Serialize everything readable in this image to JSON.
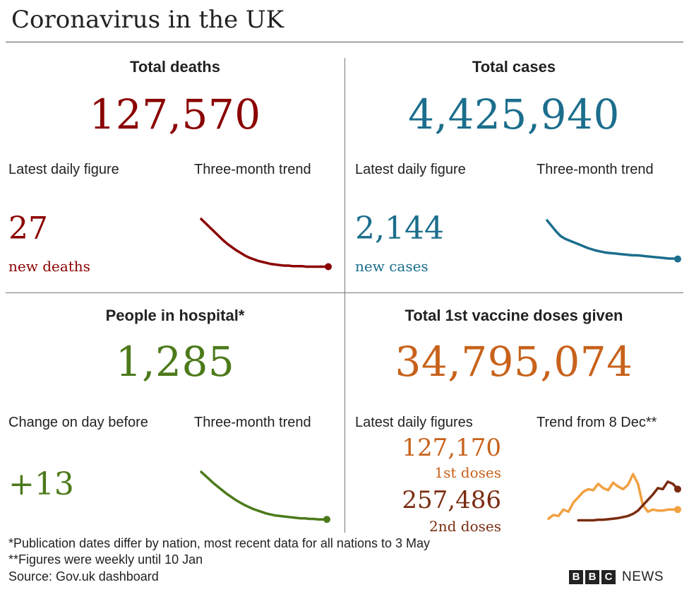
{
  "title": "Coronavirus in the UK",
  "colors": {
    "deaths": "#8b0000",
    "cases": "#1b6e8c",
    "hospital": "#4c7a1a",
    "vaccine": "#c8621b",
    "dose1": "#f2a040",
    "dose2": "#7a2c10"
  },
  "deaths": {
    "heading": "Total deaths",
    "total": "127,570",
    "daily_label": "Latest daily figure",
    "trend_label": "Three-month trend",
    "daily_value": "27",
    "daily_caption": "new deaths"
  },
  "cases": {
    "heading": "Total cases",
    "total": "4,425,940",
    "daily_label": "Latest daily figure",
    "trend_label": "Three-month trend",
    "daily_value": "2,144",
    "daily_caption": "new cases"
  },
  "hospital": {
    "heading": "People in hospital*",
    "total": "1,285",
    "daily_label": "Change on day before",
    "trend_label": "Three-month trend",
    "daily_value": "+13"
  },
  "vaccine": {
    "heading": "Total 1st vaccine doses given",
    "total": "34,795,074",
    "daily_label": "Latest daily figures",
    "trend_label": "Trend from 8 Dec**",
    "dose1_value": "127,170",
    "dose1_caption": "1st doses",
    "dose2_value": "257,486",
    "dose2_caption": "2nd doses"
  },
  "footnotes": {
    "line1": "*Publication dates differ by nation, most recent data for all nations to 3 May",
    "line2": "**Figures were weekly until 10 Jan",
    "source": "Source: Gov.uk dashboard"
  },
  "logo": {
    "letters": [
      "B",
      "B",
      "C"
    ],
    "word": "NEWS"
  },
  "chart_data": [
    {
      "type": "line",
      "series": [
        {
          "values": [
            100,
            92,
            84,
            76,
            68,
            60,
            53,
            47,
            41,
            36,
            31,
            27,
            24,
            21,
            19,
            17,
            15,
            14,
            13,
            12,
            12,
            11,
            11,
            11,
            10,
            10,
            10,
            10,
            10,
            10
          ]
        }
      ],
      "ylim": [
        0,
        100
      ],
      "grid": false
    },
    {
      "type": "line",
      "series": [
        {
          "values": [
            100,
            88,
            76,
            66,
            60,
            56,
            52,
            48,
            44,
            40,
            37,
            34,
            32,
            30,
            29,
            28,
            27,
            26,
            25,
            24,
            24,
            23,
            22,
            21,
            20,
            19,
            18,
            17,
            17,
            16
          ]
        }
      ],
      "ylim": [
        0,
        100
      ],
      "grid": false
    },
    {
      "type": "line",
      "series": [
        {
          "values": [
            100,
            92,
            84,
            76,
            69,
            62,
            55,
            49,
            43,
            38,
            33,
            29,
            25,
            22,
            19,
            16,
            14,
            12,
            11,
            10,
            9,
            8,
            7,
            6,
            6,
            5,
            5,
            4,
            4,
            4
          ]
        }
      ],
      "ylim": [
        0,
        100
      ],
      "grid": false
    },
    {
      "type": "line",
      "series": [
        {
          "values": [
            5,
            12,
            10,
            22,
            18,
            35,
            45,
            55,
            60,
            58,
            70,
            62,
            58,
            72,
            65,
            60,
            68,
            88,
            70,
            30,
            18,
            22,
            20,
            20,
            22,
            22,
            22
          ]
        },
        {
          "values": [
            null,
            null,
            null,
            null,
            null,
            null,
            2,
            2,
            2,
            2,
            3,
            3,
            4,
            5,
            6,
            8,
            10,
            14,
            20,
            30,
            40,
            50,
            62,
            60,
            74,
            70,
            60
          ]
        }
      ],
      "ylim": [
        0,
        100
      ],
      "grid": false
    }
  ]
}
